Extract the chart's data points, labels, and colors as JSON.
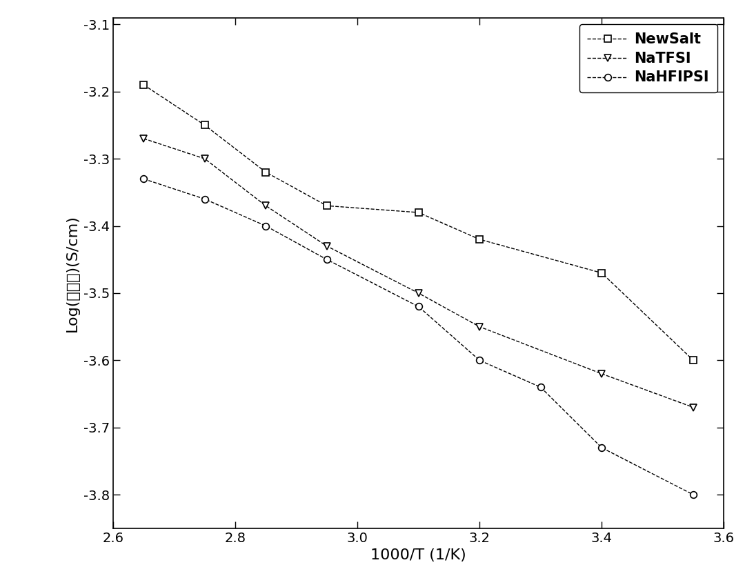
{
  "NewSalt_x": [
    2.65,
    2.75,
    2.85,
    2.95,
    3.1,
    3.2,
    3.4,
    3.55
  ],
  "NewSalt_y": [
    -3.19,
    -3.25,
    -3.32,
    -3.37,
    -3.38,
    -3.42,
    -3.47,
    -3.6
  ],
  "NaTFSI_x": [
    2.65,
    2.75,
    2.85,
    2.95,
    3.1,
    3.2,
    3.4,
    3.55
  ],
  "NaTFSI_y": [
    -3.27,
    -3.3,
    -3.37,
    -3.43,
    -3.5,
    -3.55,
    -3.62,
    -3.67
  ],
  "NaHFIPSI_x": [
    2.65,
    2.75,
    2.85,
    2.95,
    3.1,
    3.2,
    3.3,
    3.4,
    3.55
  ],
  "NaHFIPSI_y": [
    -3.33,
    -3.36,
    -3.4,
    -3.45,
    -3.52,
    -3.6,
    -3.64,
    -3.73,
    -3.8
  ],
  "xlabel": "1000/T (1/K)",
  "ylabel_top": "Log(",
  "ylabel_cjk": "电导率",
  "ylabel_bottom": ")(S/cm)",
  "xlim": [
    2.6,
    3.6
  ],
  "ylim": [
    -3.85,
    -3.09
  ],
  "xticks": [
    2.6,
    2.8,
    3.0,
    3.2,
    3.4,
    3.6
  ],
  "yticks": [
    -3.1,
    -3.2,
    -3.3,
    -3.4,
    -3.5,
    -3.6,
    -3.7,
    -3.8
  ],
  "legend_labels": [
    "NewSalt",
    "NaTFSI",
    "NaHFIPSI"
  ],
  "line_color": "#000000",
  "background_color": "#ffffff",
  "label_fontsize": 16,
  "tick_fontsize": 14,
  "legend_fontsize": 14
}
